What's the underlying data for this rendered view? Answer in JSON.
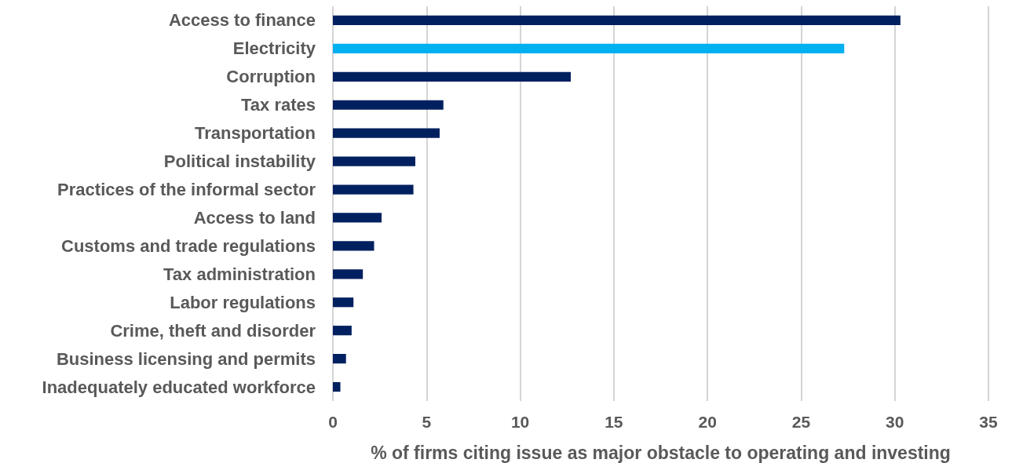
{
  "chart_data": {
    "type": "bar",
    "orientation": "horizontal",
    "xlabel": "% of firms citing issue as major obstacle to operating and investing",
    "categories": [
      "Access to finance",
      "Electricity",
      "Corruption",
      "Tax rates",
      "Transportation",
      "Political instability",
      "Practices of the informal sector",
      "Access to land",
      "Customs and trade regulations",
      "Tax administration",
      "Labor regulations",
      "Crime, theft and disorder",
      "Business licensing and permits",
      "Inadequately educated workforce"
    ],
    "values": [
      30.3,
      27.3,
      12.7,
      5.9,
      5.7,
      4.4,
      4.3,
      2.6,
      2.2,
      1.6,
      1.1,
      1.0,
      0.7,
      0.4
    ],
    "colors": [
      "#002060",
      "#00b0f0",
      "#002060",
      "#002060",
      "#002060",
      "#002060",
      "#002060",
      "#002060",
      "#002060",
      "#002060",
      "#002060",
      "#002060",
      "#002060",
      "#002060"
    ],
    "xlim": [
      0,
      35
    ],
    "xticks": [
      0,
      5,
      10,
      15,
      20,
      25,
      30,
      35
    ],
    "grid": "x"
  }
}
